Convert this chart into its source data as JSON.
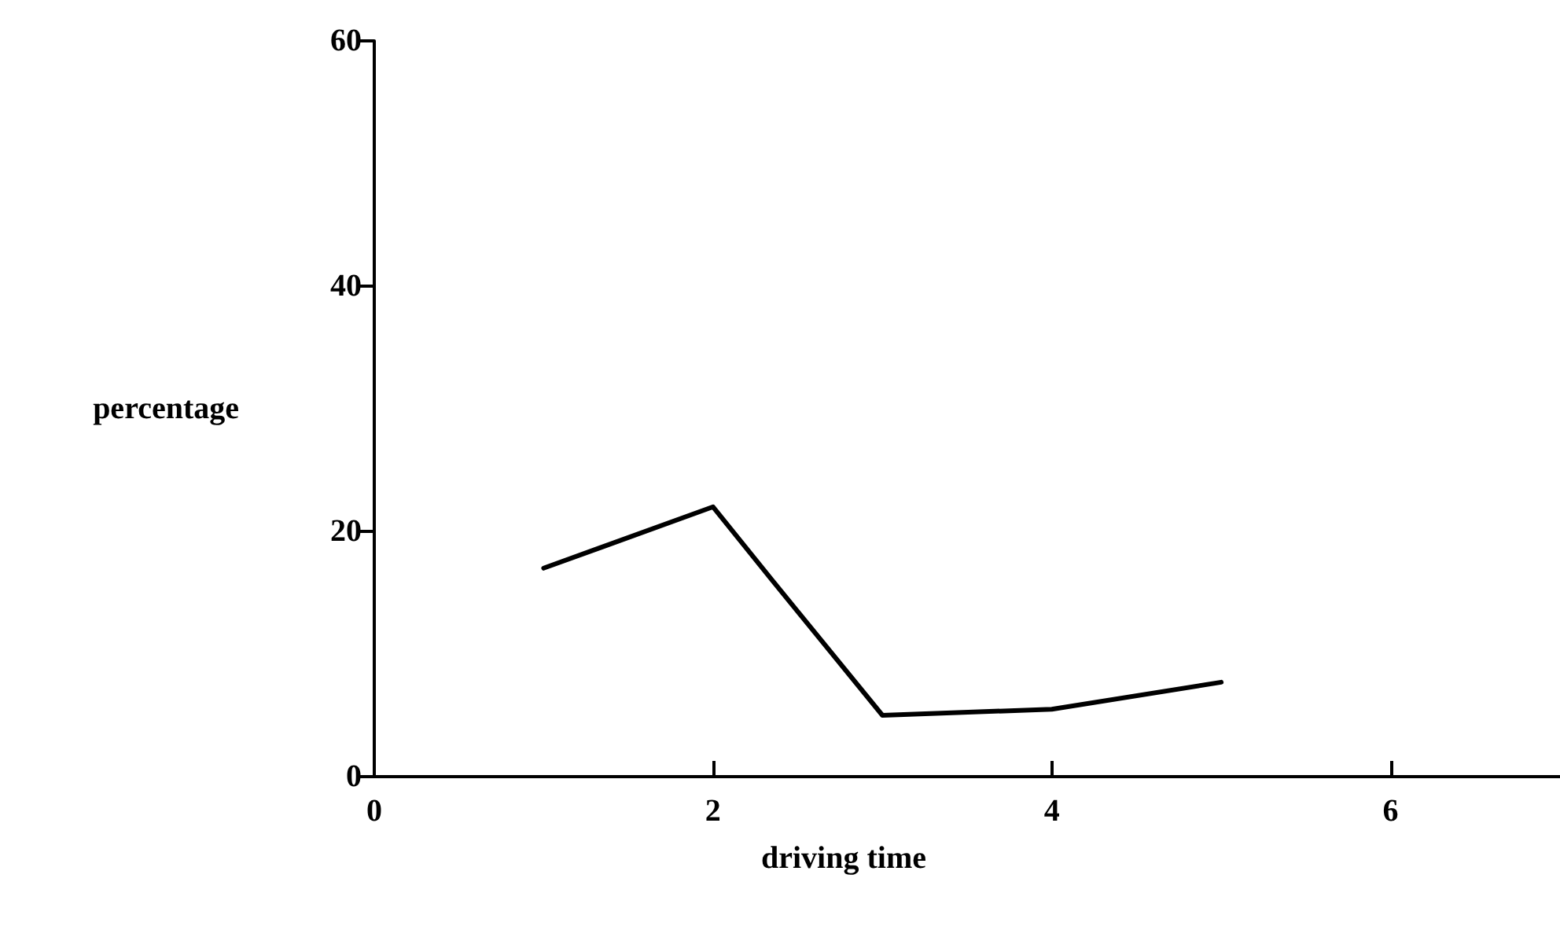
{
  "chart_data": {
    "type": "line",
    "xlabel": "driving time",
    "ylabel": "percentage",
    "x": [
      1,
      2,
      2.35,
      3,
      4,
      5
    ],
    "series": [
      {
        "color": "#000000",
        "values": [
          17,
          22,
          16,
          5,
          5.5,
          7.7
        ]
      }
    ],
    "xlim": [
      0,
      7
    ],
    "xticks": [
      0,
      2,
      4,
      6
    ],
    "ylim": [
      0,
      60
    ],
    "yticks": [
      0,
      20,
      40,
      60
    ],
    "grid": false,
    "marker": "none",
    "line_style": "solid"
  }
}
